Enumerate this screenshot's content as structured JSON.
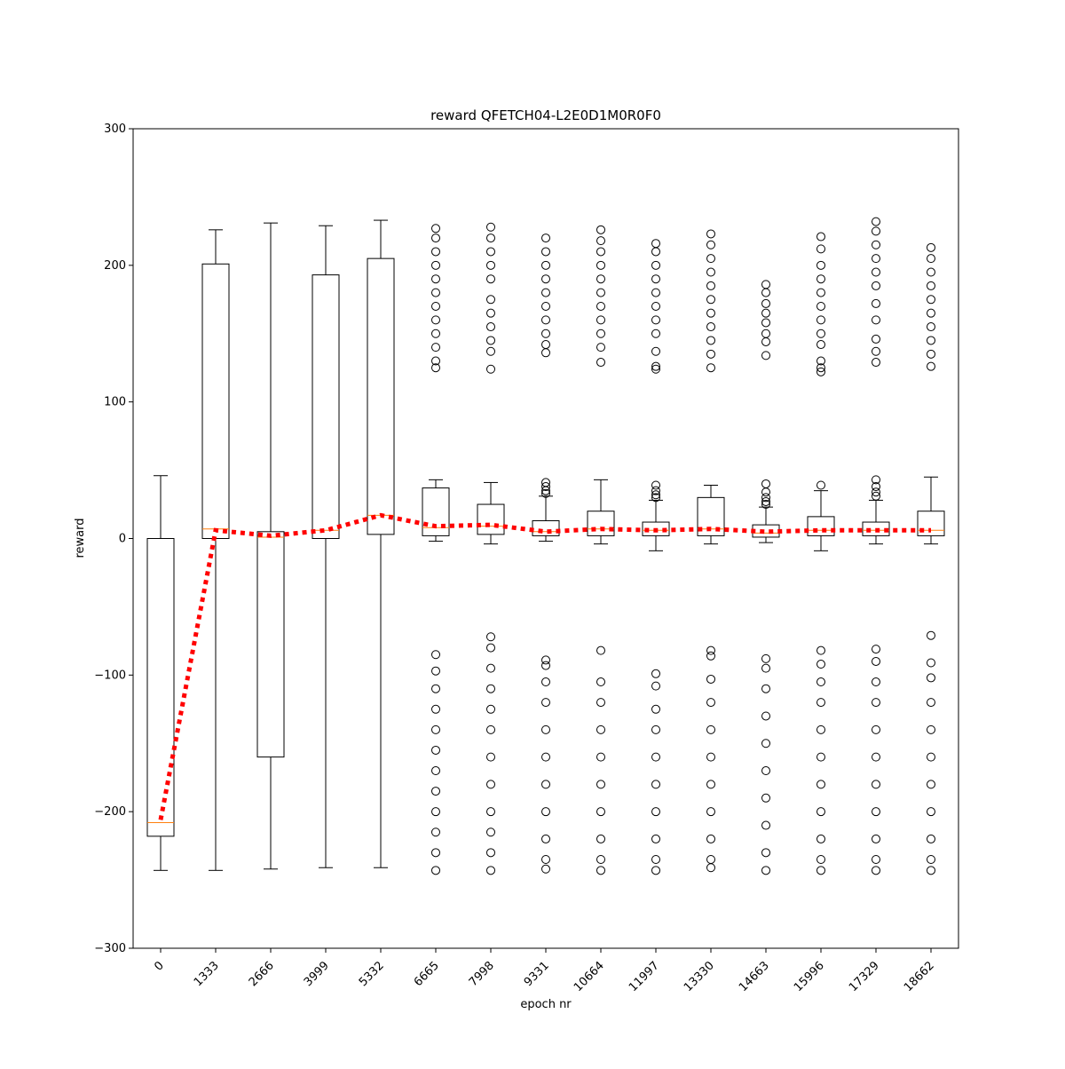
{
  "chart_data": {
    "type": "box",
    "title": "reward QFETCH04-L2E0D1M0R0F0",
    "x_label": "epoch nr",
    "y_label": "reward",
    "categories": [
      "0",
      "1333",
      "2666",
      "3999",
      "5332",
      "6665",
      "7998",
      "9331",
      "10664",
      "11997",
      "13330",
      "14663",
      "15996",
      "17329",
      "18662"
    ],
    "box_color": "#000000",
    "median_color": "#ff7f0e",
    "mean_color": "#ff0000",
    "ylim": [
      -300,
      300
    ],
    "yticks": [
      {
        "value": -300,
        "label": "−300"
      },
      {
        "value": -200,
        "label": "−200"
      },
      {
        "value": -100,
        "label": "−100"
      },
      0,
      100,
      200,
      300
    ],
    "boxes": [
      {
        "low": -243,
        "q1": -218,
        "median": -208,
        "q3": 0,
        "high": 46,
        "outliers": []
      },
      {
        "low": -243,
        "q1": 0,
        "median": 7,
        "q3": 201,
        "high": 226,
        "outliers": []
      },
      {
        "low": -242,
        "q1": -160,
        "median": 1,
        "q3": 5,
        "high": 231,
        "outliers": []
      },
      {
        "low": -241,
        "q1": 0,
        "median": 6,
        "q3": 193,
        "high": 229,
        "outliers": []
      },
      {
        "low": -241,
        "q1": 3,
        "median": 17,
        "q3": 205,
        "high": 233,
        "outliers": []
      },
      {
        "low": -2,
        "q1": 2,
        "median": 8,
        "q3": 37,
        "high": 43,
        "outliers": [
          227,
          220,
          210,
          200,
          190,
          180,
          170,
          160,
          150,
          140,
          130,
          125,
          -85,
          -97,
          -110,
          -125,
          -140,
          -155,
          -170,
          -185,
          -200,
          -215,
          -230,
          -243
        ]
      },
      {
        "low": -4,
        "q1": 3,
        "median": 9,
        "q3": 25,
        "high": 41,
        "outliers": [
          228,
          220,
          210,
          200,
          190,
          175,
          165,
          155,
          145,
          137,
          124,
          -72,
          -80,
          -95,
          -110,
          -125,
          -140,
          -160,
          -180,
          -200,
          -215,
          -230,
          -243
        ]
      },
      {
        "low": -2,
        "q1": 2,
        "median": 5,
        "q3": 13,
        "high": 31,
        "outliers": [
          41,
          38,
          35,
          33,
          220,
          210,
          200,
          190,
          180,
          170,
          160,
          150,
          142,
          136,
          -89,
          -93,
          -105,
          -120,
          -140,
          -160,
          -180,
          -200,
          -220,
          -235,
          -242
        ]
      },
      {
        "low": -4,
        "q1": 2,
        "median": 7,
        "q3": 20,
        "high": 43,
        "outliers": [
          226,
          218,
          210,
          200,
          190,
          180,
          170,
          160,
          150,
          140,
          129,
          -82,
          -105,
          -120,
          -140,
          -160,
          -180,
          -200,
          -220,
          -235,
          -243
        ]
      },
      {
        "low": -9,
        "q1": 2,
        "median": 6,
        "q3": 12,
        "high": 28,
        "outliers": [
          39,
          35,
          32,
          30,
          216,
          210,
          200,
          190,
          180,
          170,
          160,
          150,
          137,
          126,
          124,
          -99,
          -108,
          -125,
          -140,
          -160,
          -180,
          -200,
          -220,
          -235,
          -243
        ]
      },
      {
        "low": -4,
        "q1": 2,
        "median": 7,
        "q3": 30,
        "high": 39,
        "outliers": [
          223,
          215,
          205,
          195,
          185,
          175,
          165,
          155,
          145,
          135,
          125,
          -82,
          -86,
          -103,
          -120,
          -140,
          -160,
          -180,
          -200,
          -220,
          -235,
          -241
        ]
      },
      {
        "low": -3,
        "q1": 1,
        "median": 4,
        "q3": 10,
        "high": 23,
        "outliers": [
          40,
          34,
          30,
          27,
          25,
          186,
          180,
          172,
          165,
          158,
          150,
          144,
          134,
          -88,
          -95,
          -110,
          -130,
          -150,
          -170,
          -190,
          -210,
          -230,
          -243
        ]
      },
      {
        "low": -9,
        "q1": 2,
        "median": 6,
        "q3": 16,
        "high": 35,
        "outliers": [
          39,
          221,
          212,
          200,
          190,
          180,
          170,
          160,
          150,
          142,
          130,
          125,
          122,
          -82,
          -92,
          -105,
          -120,
          -140,
          -160,
          -180,
          -200,
          -220,
          -235,
          -243
        ]
      },
      {
        "low": -4,
        "q1": 2,
        "median": 6,
        "q3": 12,
        "high": 28,
        "outliers": [
          43,
          38,
          34,
          31,
          232,
          225,
          215,
          205,
          195,
          185,
          172,
          160,
          146,
          137,
          129,
          -81,
          -90,
          -105,
          -120,
          -140,
          -160,
          -180,
          -200,
          -220,
          -235,
          -243
        ]
      },
      {
        "low": -4,
        "q1": 2,
        "median": 6,
        "q3": 20,
        "high": 45,
        "outliers": [
          213,
          205,
          195,
          185,
          175,
          165,
          155,
          145,
          135,
          126,
          -71,
          -91,
          -102,
          -120,
          -140,
          -160,
          -180,
          -200,
          -220,
          -235,
          -243
        ]
      }
    ],
    "means": [
      -206,
      6,
      2,
      6,
      17,
      9,
      10,
      5,
      7,
      6,
      7,
      5,
      6,
      6,
      6
    ]
  }
}
